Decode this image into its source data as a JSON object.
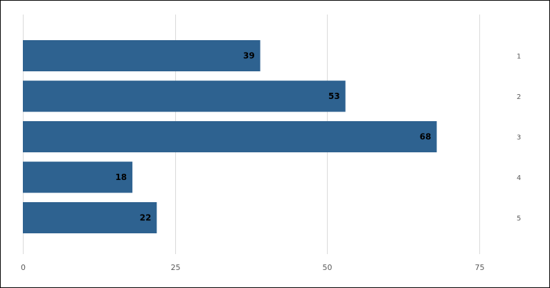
{
  "chart_data": {
    "type": "bar",
    "orientation": "horizontal",
    "categories": [
      "1",
      "2",
      "3",
      "4",
      "5"
    ],
    "values": [
      39,
      53,
      68,
      18,
      22
    ],
    "data_labels": [
      "39",
      "53",
      "68",
      "18",
      "22"
    ],
    "x_ticks": [
      "0",
      "25",
      "50",
      "75"
    ],
    "xlim": [
      0,
      75
    ],
    "grid": true,
    "y_axis_position": "right",
    "bar_color": "#2e6290",
    "title": "",
    "xlabel": "",
    "ylabel": ""
  }
}
